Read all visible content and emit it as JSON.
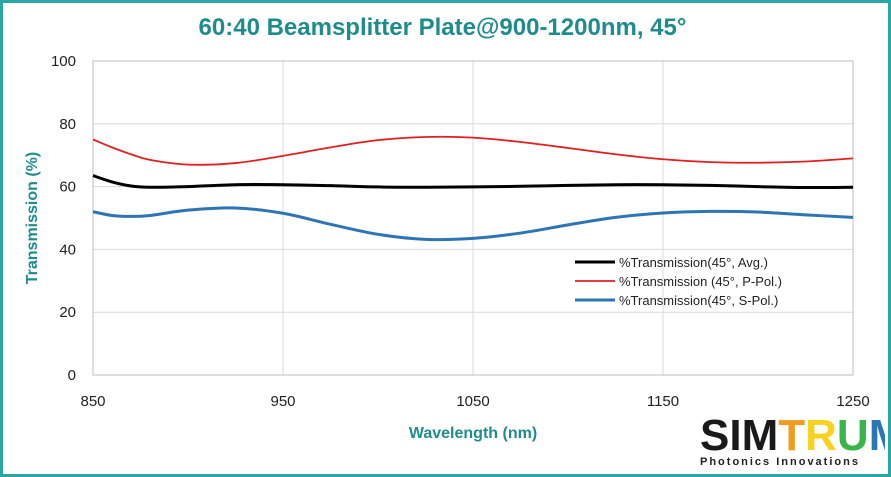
{
  "chart_data": {
    "type": "line",
    "title": "60:40 Beamsplitter Plate@900-1200nm, 45°",
    "xlabel": "Wavelength (nm)",
    "ylabel": "Transmission (%)",
    "xlim": [
      850,
      1250
    ],
    "ylim": [
      0,
      100
    ],
    "xticks": [
      850,
      950,
      1050,
      1150,
      1250
    ],
    "yticks": [
      0,
      20,
      40,
      60,
      80,
      100
    ],
    "grid": "vertical and horizontal",
    "legend_position": "bottom-right inside plot",
    "series": [
      {
        "name": "%Transmission(45°, Avg.)",
        "color": "#000000",
        "x": [
          850,
          860,
          870,
          880,
          900,
          925,
          950,
          975,
          1000,
          1025,
          1050,
          1075,
          1100,
          1125,
          1150,
          1175,
          1200,
          1225,
          1250
        ],
        "y": [
          63.5,
          61.5,
          60.2,
          59.8,
          60.0,
          60.6,
          60.6,
          60.3,
          59.9,
          59.8,
          59.9,
          60.1,
          60.4,
          60.6,
          60.6,
          60.4,
          60.0,
          59.7,
          59.8
        ]
      },
      {
        "name": "%Transmission (45°, P-Pol.)",
        "color": "#e02020",
        "x": [
          850,
          860,
          870,
          880,
          900,
          925,
          950,
          975,
          1000,
          1025,
          1050,
          1075,
          1100,
          1125,
          1150,
          1175,
          1200,
          1225,
          1250
        ],
        "y": [
          75.0,
          72.5,
          70.3,
          68.5,
          67.0,
          67.5,
          69.8,
          72.5,
          74.8,
          75.8,
          75.6,
          74.2,
          72.3,
          70.3,
          68.7,
          67.8,
          67.6,
          68.0,
          69.0
        ]
      },
      {
        "name": "%Transmission(45°, S-Pol.)",
        "color": "#2e75b6",
        "x": [
          850,
          860,
          870,
          880,
          900,
          925,
          950,
          975,
          1000,
          1025,
          1050,
          1075,
          1100,
          1125,
          1150,
          1175,
          1200,
          1225,
          1250
        ],
        "y": [
          52.0,
          50.8,
          50.5,
          50.8,
          52.5,
          53.2,
          51.5,
          48.0,
          44.8,
          43.2,
          43.5,
          45.2,
          47.8,
          50.2,
          51.6,
          52.1,
          51.9,
          51.0,
          50.2
        ]
      }
    ]
  },
  "logo": {
    "word_left": "SIM",
    "word_right": "TRUM",
    "tagline": "Photonics Innovations",
    "colors": [
      "#d62020",
      "#f29c1f",
      "#f7d21f",
      "#3ab54a",
      "#2e75b6",
      "#7a3fa0"
    ]
  }
}
